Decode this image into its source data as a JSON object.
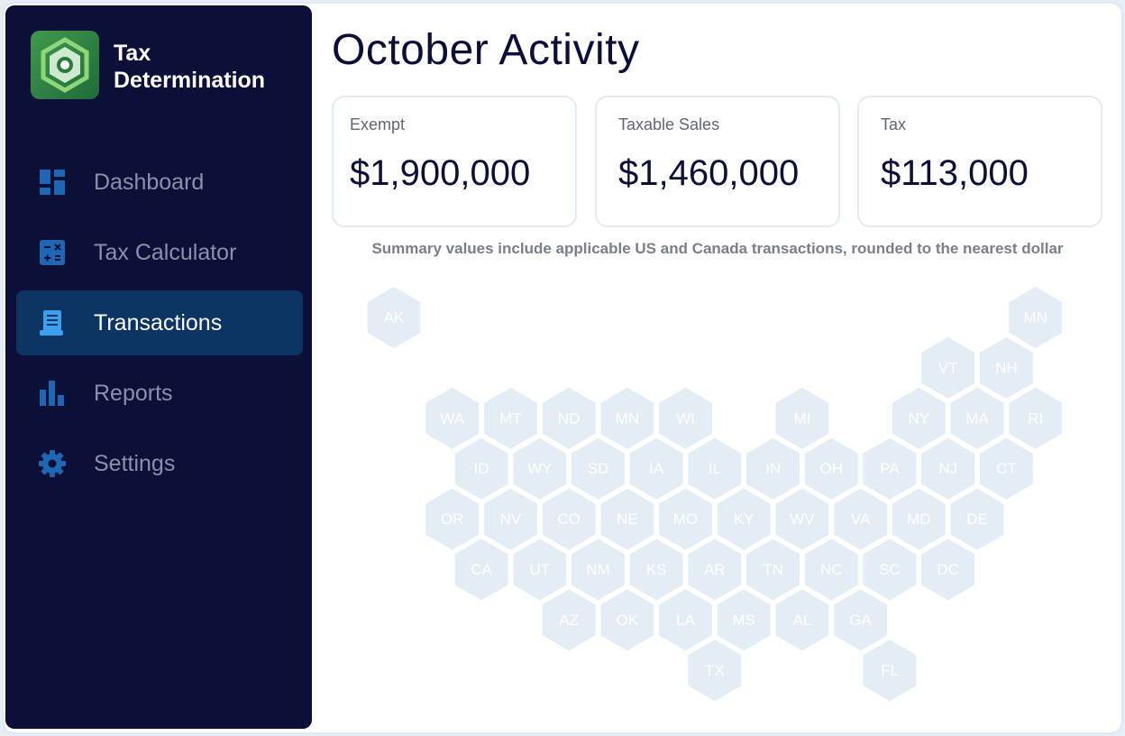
{
  "app": {
    "title": "Tax Determination",
    "logo_icon": "hexagon-logo-icon"
  },
  "sidebar": {
    "items": [
      {
        "label": "Dashboard",
        "icon": "dashboard-icon",
        "active": false
      },
      {
        "label": "Tax Calculator",
        "icon": "calculator-icon",
        "active": false
      },
      {
        "label": "Transactions",
        "icon": "receipt-icon",
        "active": true
      },
      {
        "label": "Reports",
        "icon": "bar-chart-icon",
        "active": false
      },
      {
        "label": "Settings",
        "icon": "gear-icon",
        "active": false
      }
    ]
  },
  "main": {
    "title": "October Activity",
    "cards": [
      {
        "label": "Exempt",
        "value": "$1,900,000"
      },
      {
        "label": "Taxable Sales",
        "value": "$1,460,000"
      },
      {
        "label": "Tax",
        "value": "$113,000"
      }
    ],
    "note": "Summary values include applicable US and Canada transactions, rounded to the nearest dollar"
  },
  "map": {
    "hex_fill": "#e4ecf6",
    "label_color": "#ffffff",
    "states": [
      {
        "code": "AK",
        "row": 0,
        "col": 1
      },
      {
        "code": "MN",
        "row": 0,
        "col": 12
      },
      {
        "code": "VT",
        "row": 1,
        "col": 10
      },
      {
        "code": "NH",
        "row": 1,
        "col": 11
      },
      {
        "code": "WA",
        "row": 2,
        "col": 2
      },
      {
        "code": "MT",
        "row": 2,
        "col": 3
      },
      {
        "code": "ND",
        "row": 2,
        "col": 4
      },
      {
        "code": "MN",
        "row": 2,
        "col": 5
      },
      {
        "code": "WI",
        "row": 2,
        "col": 6
      },
      {
        "code": "MI",
        "row": 2,
        "col": 8
      },
      {
        "code": "NY",
        "row": 2,
        "col": 10
      },
      {
        "code": "MA",
        "row": 2,
        "col": 11
      },
      {
        "code": "RI",
        "row": 2,
        "col": 12
      },
      {
        "code": "ID",
        "row": 3,
        "col": 2
      },
      {
        "code": "WY",
        "row": 3,
        "col": 3
      },
      {
        "code": "SD",
        "row": 3,
        "col": 4
      },
      {
        "code": "IA",
        "row": 3,
        "col": 5
      },
      {
        "code": "IL",
        "row": 3,
        "col": 6
      },
      {
        "code": "IN",
        "row": 3,
        "col": 7
      },
      {
        "code": "OH",
        "row": 3,
        "col": 8
      },
      {
        "code": "PA",
        "row": 3,
        "col": 9
      },
      {
        "code": "NJ",
        "row": 3,
        "col": 10
      },
      {
        "code": "CT",
        "row": 3,
        "col": 11
      },
      {
        "code": "OR",
        "row": 4,
        "col": 2
      },
      {
        "code": "NV",
        "row": 4,
        "col": 3
      },
      {
        "code": "CO",
        "row": 4,
        "col": 4
      },
      {
        "code": "NE",
        "row": 4,
        "col": 5
      },
      {
        "code": "MO",
        "row": 4,
        "col": 6
      },
      {
        "code": "KY",
        "row": 4,
        "col": 7
      },
      {
        "code": "WV",
        "row": 4,
        "col": 8
      },
      {
        "code": "VA",
        "row": 4,
        "col": 9
      },
      {
        "code": "MD",
        "row": 4,
        "col": 10
      },
      {
        "code": "DE",
        "row": 4,
        "col": 11
      },
      {
        "code": "CA",
        "row": 5,
        "col": 2
      },
      {
        "code": "UT",
        "row": 5,
        "col": 3
      },
      {
        "code": "NM",
        "row": 5,
        "col": 4
      },
      {
        "code": "KS",
        "row": 5,
        "col": 5
      },
      {
        "code": "AR",
        "row": 5,
        "col": 6
      },
      {
        "code": "TN",
        "row": 5,
        "col": 7
      },
      {
        "code": "NC",
        "row": 5,
        "col": 8
      },
      {
        "code": "SC",
        "row": 5,
        "col": 9
      },
      {
        "code": "DC",
        "row": 5,
        "col": 10
      },
      {
        "code": "AZ",
        "row": 6,
        "col": 4
      },
      {
        "code": "OK",
        "row": 6,
        "col": 5
      },
      {
        "code": "LA",
        "row": 6,
        "col": 6
      },
      {
        "code": "MS",
        "row": 6,
        "col": 7
      },
      {
        "code": "AL",
        "row": 6,
        "col": 8
      },
      {
        "code": "GA",
        "row": 6,
        "col": 9
      },
      {
        "code": "TX",
        "row": 7,
        "col": 6
      },
      {
        "code": "FL",
        "row": 7,
        "col": 9
      }
    ]
  }
}
